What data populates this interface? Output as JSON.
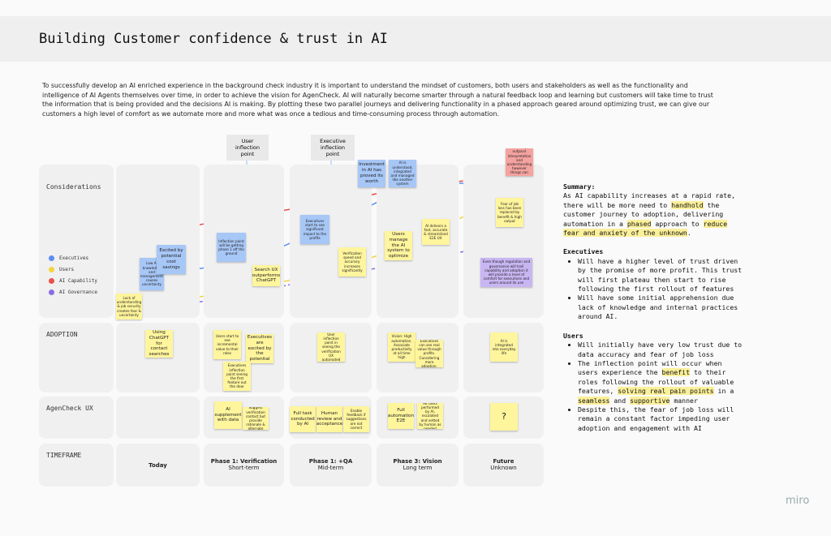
{
  "title": "Building Customer confidence & trust in AI",
  "intro": "To successfully develop an AI enriched experience in the background check industry it is important to understand the mindset of customers, both users and stakeholders as well as the functionality and intelligence of AI Agents themselves over time, in order to achieve the vision for AgenCheck. AI will naturally become smarter through a natural feedback loop and learning but customers will take time to trust the information that is being provided and the decisions AI is making. By plotting these two parallel journeys and delivering functionality in a phased approach geared around optimizing trust, we can give our customers a high level of comfort as we automate more and more what was once a tedious and time-consuming process through automation.",
  "callouts": [
    "User inflection point",
    "Executive inflection point"
  ],
  "rows": [
    "Considerations",
    "ADOPTION",
    "AgenCheck UX",
    "TIMEFRAME"
  ],
  "legend": [
    {
      "name": "Executives",
      "color": "#5b8def"
    },
    {
      "name": "Users",
      "color": "#f5d33f"
    },
    {
      "name": "AI Capability",
      "color": "#e8504a"
    },
    {
      "name": "AI Governance",
      "color": "#8a6de0"
    }
  ],
  "timeframes": [
    {
      "name": "Today"
    },
    {
      "name": "Phase 1: Verification",
      "sub": "Short-term"
    },
    {
      "name": "Phase 1: +QA",
      "sub": "Mid-term"
    },
    {
      "name": "Phase 3: Vision",
      "sub": "Long term"
    },
    {
      "name": "Future",
      "sub": "Unknown"
    }
  ],
  "stickies": [
    {
      "text": "Lack of understanding & job security creates fear & uncertainty",
      "color": "#fff59d"
    },
    {
      "text": "Low AI knowledge and management causes uncertainty",
      "color": "#a7c7f7"
    },
    {
      "text": "Excited by potential cost savings",
      "color": "#a7c7f7"
    },
    {
      "text": "Inflection point will be getting phase 1 off the ground",
      "color": "#a7c7f7"
    },
    {
      "text": "Search UX outperforms ChatGPT",
      "color": "#fff59d"
    },
    {
      "text": "Executives start to see significant impact to the profits",
      "color": "#a7c7f7"
    },
    {
      "text": "Verification speed and accuracy increases significantly",
      "color": "#fff59d"
    },
    {
      "text": "Investment in AI has proved its worth",
      "color": "#a7c7f7"
    },
    {
      "text": "AI is understood, integrated and managed like another system",
      "color": "#a7c7f7"
    },
    {
      "text": "Users manage the AI system to optimize",
      "color": "#fff59d"
    },
    {
      "text": "AI delivers a fast, accurate & streamlined E2E UX",
      "color": "#fff59d"
    },
    {
      "text": "AI capabilities will always outpace interpretation and understanding however things can and manage its use",
      "color": "#f4a3a0"
    },
    {
      "text": "Fear of job loss has been replaced by benefit & high output",
      "color": "#fff59d"
    },
    {
      "text": "Even though regulation and governance will trail capability and adoption it will provide a level of comfort for executives and users around its use",
      "color": "#c7b6f2"
    },
    {
      "text": "Using ChatGPT for contact searches",
      "color": "#fff59d"
    },
    {
      "text": "Users start to see incremental value to their roles",
      "color": "#fff59d"
    },
    {
      "text": "Executives are excited by the potential",
      "color": "#fff59d"
    },
    {
      "text": "Executives inflection point seeing the first feature out the door",
      "color": "#fff59d"
    },
    {
      "text": "User inflection point in seeing the verification UX automated",
      "color": "#fff59d"
    },
    {
      "text": "Vision: High automation. Associate productivity at all time high",
      "color": "#fff59d"
    },
    {
      "text": "Executives can see real value through profits. Considering more adoption.",
      "color": "#fff59d"
    },
    {
      "text": "AI is integrated into everyday life",
      "color": "#fff59d"
    },
    {
      "text": "AI supplement with data",
      "color": "#fff59d"
    },
    {
      "text": "Suggest verification contact but provide rationale & alternate",
      "color": "#fff59d"
    },
    {
      "text": "Full task conducted by AI",
      "color": "#fff59d"
    },
    {
      "text": "Human review and acceptance",
      "color": "#fff59d"
    },
    {
      "text": "Enable feedback if suggestions are not correct",
      "color": "#fff59d"
    },
    {
      "text": "Full automation E2E",
      "color": "#fff59d"
    },
    {
      "text": "AE tasks performed by AI, escalated and vetted by human as needed",
      "color": "#fff59d"
    },
    {
      "text": "?",
      "color": "#fff59d"
    }
  ],
  "summary": {
    "heading": "Summary:",
    "body": [
      {
        "text": "As AI capability increases at a rapid rate, there will be more need to "
      },
      {
        "text": "handhold",
        "highlight": true
      },
      {
        "text": " the customer journey to adoption, delivering automation in a "
      },
      {
        "text": "phased",
        "highlight": true
      },
      {
        "text": " approach to "
      },
      {
        "text": "reduce fear and anxiety of the unknown",
        "highlight": true
      },
      {
        "text": "."
      }
    ],
    "sections": [
      {
        "heading": "Executives",
        "bullets": [
          [
            {
              "text": "Will have a higher level of trust driven by the promise of more profit. This trust will first plateau then start to rise following the first rollout of features"
            }
          ],
          [
            {
              "text": "Will have some initial apprehension due lack of knowledge and internal practices around AI."
            }
          ]
        ]
      },
      {
        "heading": "Users",
        "bullets": [
          [
            {
              "text": "Will initially have very low trust due to data accuracy and fear of job loss"
            }
          ],
          [
            {
              "text": "The inflection point will occur when users experience the "
            },
            {
              "text": "benefit",
              "highlight": true
            },
            {
              "text": " to their roles following the rollout of valuable features, "
            },
            {
              "text": "solving real pain points",
              "highlight": true
            },
            {
              "text": " in a "
            },
            {
              "text": "seamless",
              "highlight": true
            },
            {
              "text": " and "
            },
            {
              "text": "supportive",
              "highlight": true
            },
            {
              "text": " manner"
            }
          ],
          [
            {
              "text": "Despite this, the fear of job loss will remain a constant factor impeding user adoption and engagement with AI"
            }
          ]
        ]
      }
    ]
  },
  "brand": "miro"
}
